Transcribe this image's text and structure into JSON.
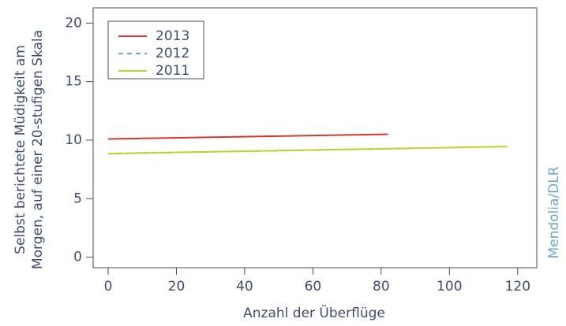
{
  "chart_data": {
    "type": "line",
    "ylabel": [
      "Selbst berichtete Müdigkeit am",
      "Morgen, auf einer 20-stufigen Skala"
    ],
    "xlabel": "Anzahl der Überflüge",
    "credit": "Mendolia/DLR",
    "series": [
      {
        "name": "2013",
        "color": "#d9372a",
        "linestyle": "solid",
        "x": [
          0,
          82
        ],
        "values": [
          10.1,
          10.5
        ]
      },
      {
        "name": "2012",
        "color": "#5aaed0",
        "linestyle": "dashed",
        "x": [
          0,
          89
        ],
        "values": [
          8.85,
          9.3
        ]
      },
      {
        "name": "2011",
        "color": "#c3d12a",
        "linestyle": "solid",
        "x": [
          0,
          117
        ],
        "values": [
          8.85,
          9.45
        ]
      }
    ],
    "xlim": [
      -4.4,
      125.6
    ],
    "xticks": [
      0,
      20,
      40,
      60,
      80,
      100,
      120
    ],
    "ylim": [
      -0.9,
      21.3
    ],
    "yticks": [
      0,
      5,
      10,
      15,
      20
    ],
    "legend": "top-left",
    "grid": false
  }
}
